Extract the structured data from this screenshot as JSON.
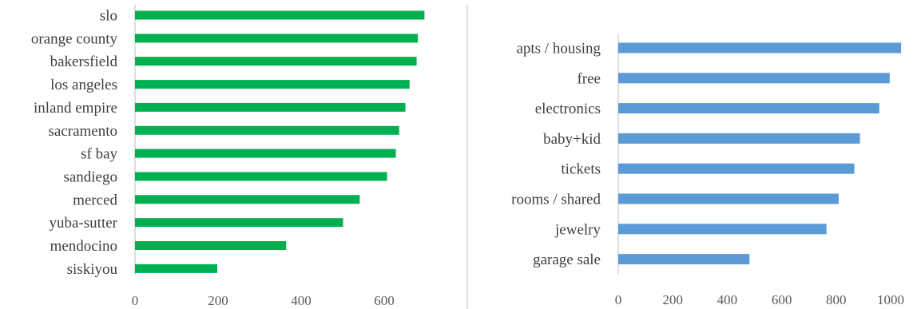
{
  "chart_data": [
    {
      "type": "bar",
      "orientation": "horizontal",
      "categories": [
        "slo",
        "orange county",
        "bakersfield",
        "los angeles",
        "inland empire",
        "sacramento",
        "sf bay",
        "sandiego",
        "merced",
        "yuba-sutter",
        "mendocino",
        "siskiyou"
      ],
      "values": [
        697,
        681,
        678,
        661,
        651,
        636,
        628,
        607,
        541,
        501,
        364,
        198
      ],
      "color": "#00b050",
      "xlim": [
        0,
        700
      ],
      "xticks": [
        "0",
        "200",
        "400",
        "600"
      ],
      "grid": false,
      "title": "",
      "xlabel": "",
      "ylabel": ""
    },
    {
      "type": "bar",
      "orientation": "horizontal",
      "categories": [
        "apts / housing",
        "free",
        "electronics",
        "baby+kid",
        "tickets",
        "rooms / shared",
        "jewelry",
        "garage sale"
      ],
      "values": [
        1039,
        997,
        959,
        888,
        867,
        810,
        765,
        482
      ],
      "color": "#5b9bd5",
      "xlim": [
        0,
        1050
      ],
      "xticks": [
        "0",
        "200",
        "400",
        "600",
        "800",
        "1000"
      ],
      "grid": false,
      "title": "",
      "xlabel": "",
      "ylabel": ""
    }
  ],
  "colors": {
    "divider": "#bfbfbf",
    "axis": "#bfbfbf",
    "label": "#404040"
  }
}
